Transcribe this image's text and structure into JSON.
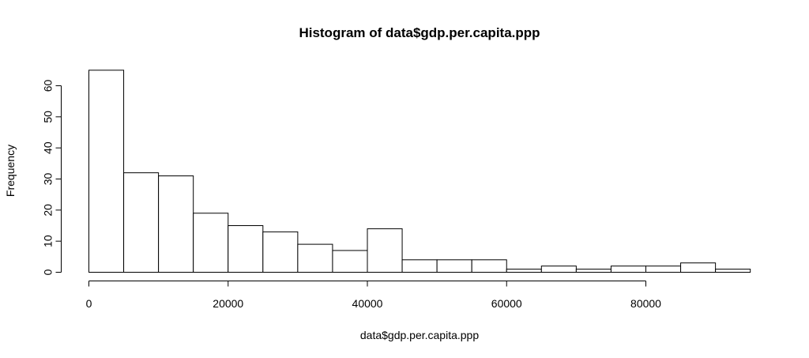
{
  "chart_data": {
    "type": "bar",
    "title": "Histogram of data$gdp.per.capita.ppp",
    "xlabel": "data$gdp.per.capita.ppp",
    "ylabel": "Frequency",
    "bin_width": 5000,
    "bins": [
      {
        "start": 0,
        "end": 5000,
        "count": 65
      },
      {
        "start": 5000,
        "end": 10000,
        "count": 32
      },
      {
        "start": 10000,
        "end": 15000,
        "count": 31
      },
      {
        "start": 15000,
        "end": 20000,
        "count": 19
      },
      {
        "start": 20000,
        "end": 25000,
        "count": 15
      },
      {
        "start": 25000,
        "end": 30000,
        "count": 13
      },
      {
        "start": 30000,
        "end": 35000,
        "count": 9
      },
      {
        "start": 35000,
        "end": 40000,
        "count": 7
      },
      {
        "start": 40000,
        "end": 45000,
        "count": 14
      },
      {
        "start": 45000,
        "end": 50000,
        "count": 4
      },
      {
        "start": 50000,
        "end": 55000,
        "count": 4
      },
      {
        "start": 55000,
        "end": 60000,
        "count": 4
      },
      {
        "start": 60000,
        "end": 65000,
        "count": 1
      },
      {
        "start": 65000,
        "end": 70000,
        "count": 2
      },
      {
        "start": 70000,
        "end": 75000,
        "count": 1
      },
      {
        "start": 75000,
        "end": 80000,
        "count": 2
      },
      {
        "start": 80000,
        "end": 85000,
        "count": 2
      },
      {
        "start": 85000,
        "end": 90000,
        "count": 3
      },
      {
        "start": 90000,
        "end": 95000,
        "count": 1
      }
    ],
    "xlim": [
      0,
      95000
    ],
    "ylim": [
      0,
      65
    ],
    "x_ticks": [
      0,
      20000,
      40000,
      60000,
      80000
    ],
    "x_tick_labels": [
      "0",
      "20000",
      "40000",
      "60000",
      "80000"
    ],
    "y_ticks": [
      0,
      10,
      20,
      30,
      40,
      50,
      60
    ],
    "y_tick_labels": [
      "0",
      "10",
      "20",
      "30",
      "40",
      "50",
      "60"
    ],
    "grid": false,
    "bar_fill": "#ffffff",
    "bar_stroke": "#000000"
  }
}
